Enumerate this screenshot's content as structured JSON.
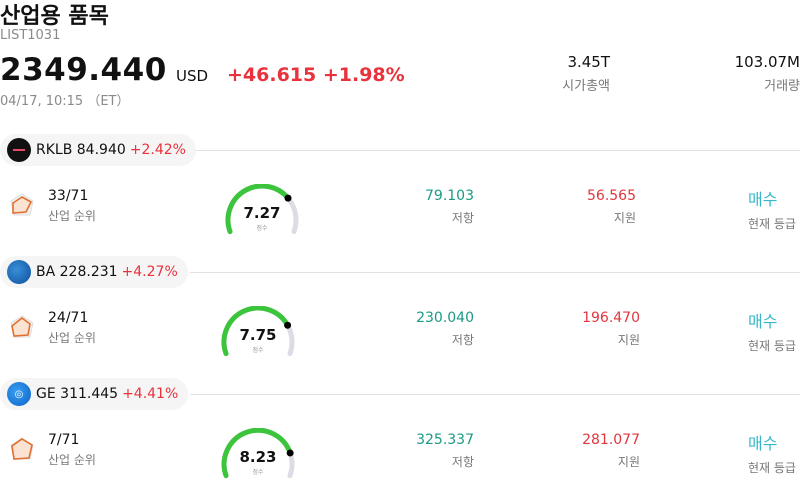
{
  "header": {
    "title": "산업용 품목",
    "code": "LIST1031",
    "price": "2349.440",
    "currency": "USD",
    "change": "+46.615 +1.98%",
    "time": "04/17, 10:15 （ET）"
  },
  "stats": [
    {
      "value": "3.45T",
      "label": "시가총액"
    },
    {
      "value": "103.07M",
      "label": "거래량"
    }
  ],
  "labels": {
    "rank": "산업 순위",
    "resistance": "저항",
    "support": "지원",
    "rating": "현재 등급",
    "score": "점수"
  },
  "stocks": [
    {
      "ticker": "RKLB",
      "price": "84.940",
      "pct": "+2.42%",
      "rank": "33/71",
      "score": "7.27",
      "score_value": 7.27,
      "resistance": "79.103",
      "support": "56.565",
      "rating": "매수"
    },
    {
      "ticker": "BA",
      "price": "228.231",
      "pct": "+4.27%",
      "rank": "24/71",
      "score": "7.75",
      "score_value": 7.75,
      "resistance": "230.040",
      "support": "196.470",
      "rating": "매수"
    },
    {
      "ticker": "GE",
      "price": "311.445",
      "pct": "+4.41%",
      "rank": "7/71",
      "score": "8.23",
      "score_value": 8.23,
      "resistance": "325.337",
      "support": "281.077",
      "rating": "매수"
    }
  ],
  "colors": {
    "up": "#e8323c",
    "resistance": "#1a9a83",
    "support": "#e0363e",
    "buy": "#36b8c8",
    "gauge_fill": "#3cc43c",
    "gauge_track": "#dcdce6"
  }
}
